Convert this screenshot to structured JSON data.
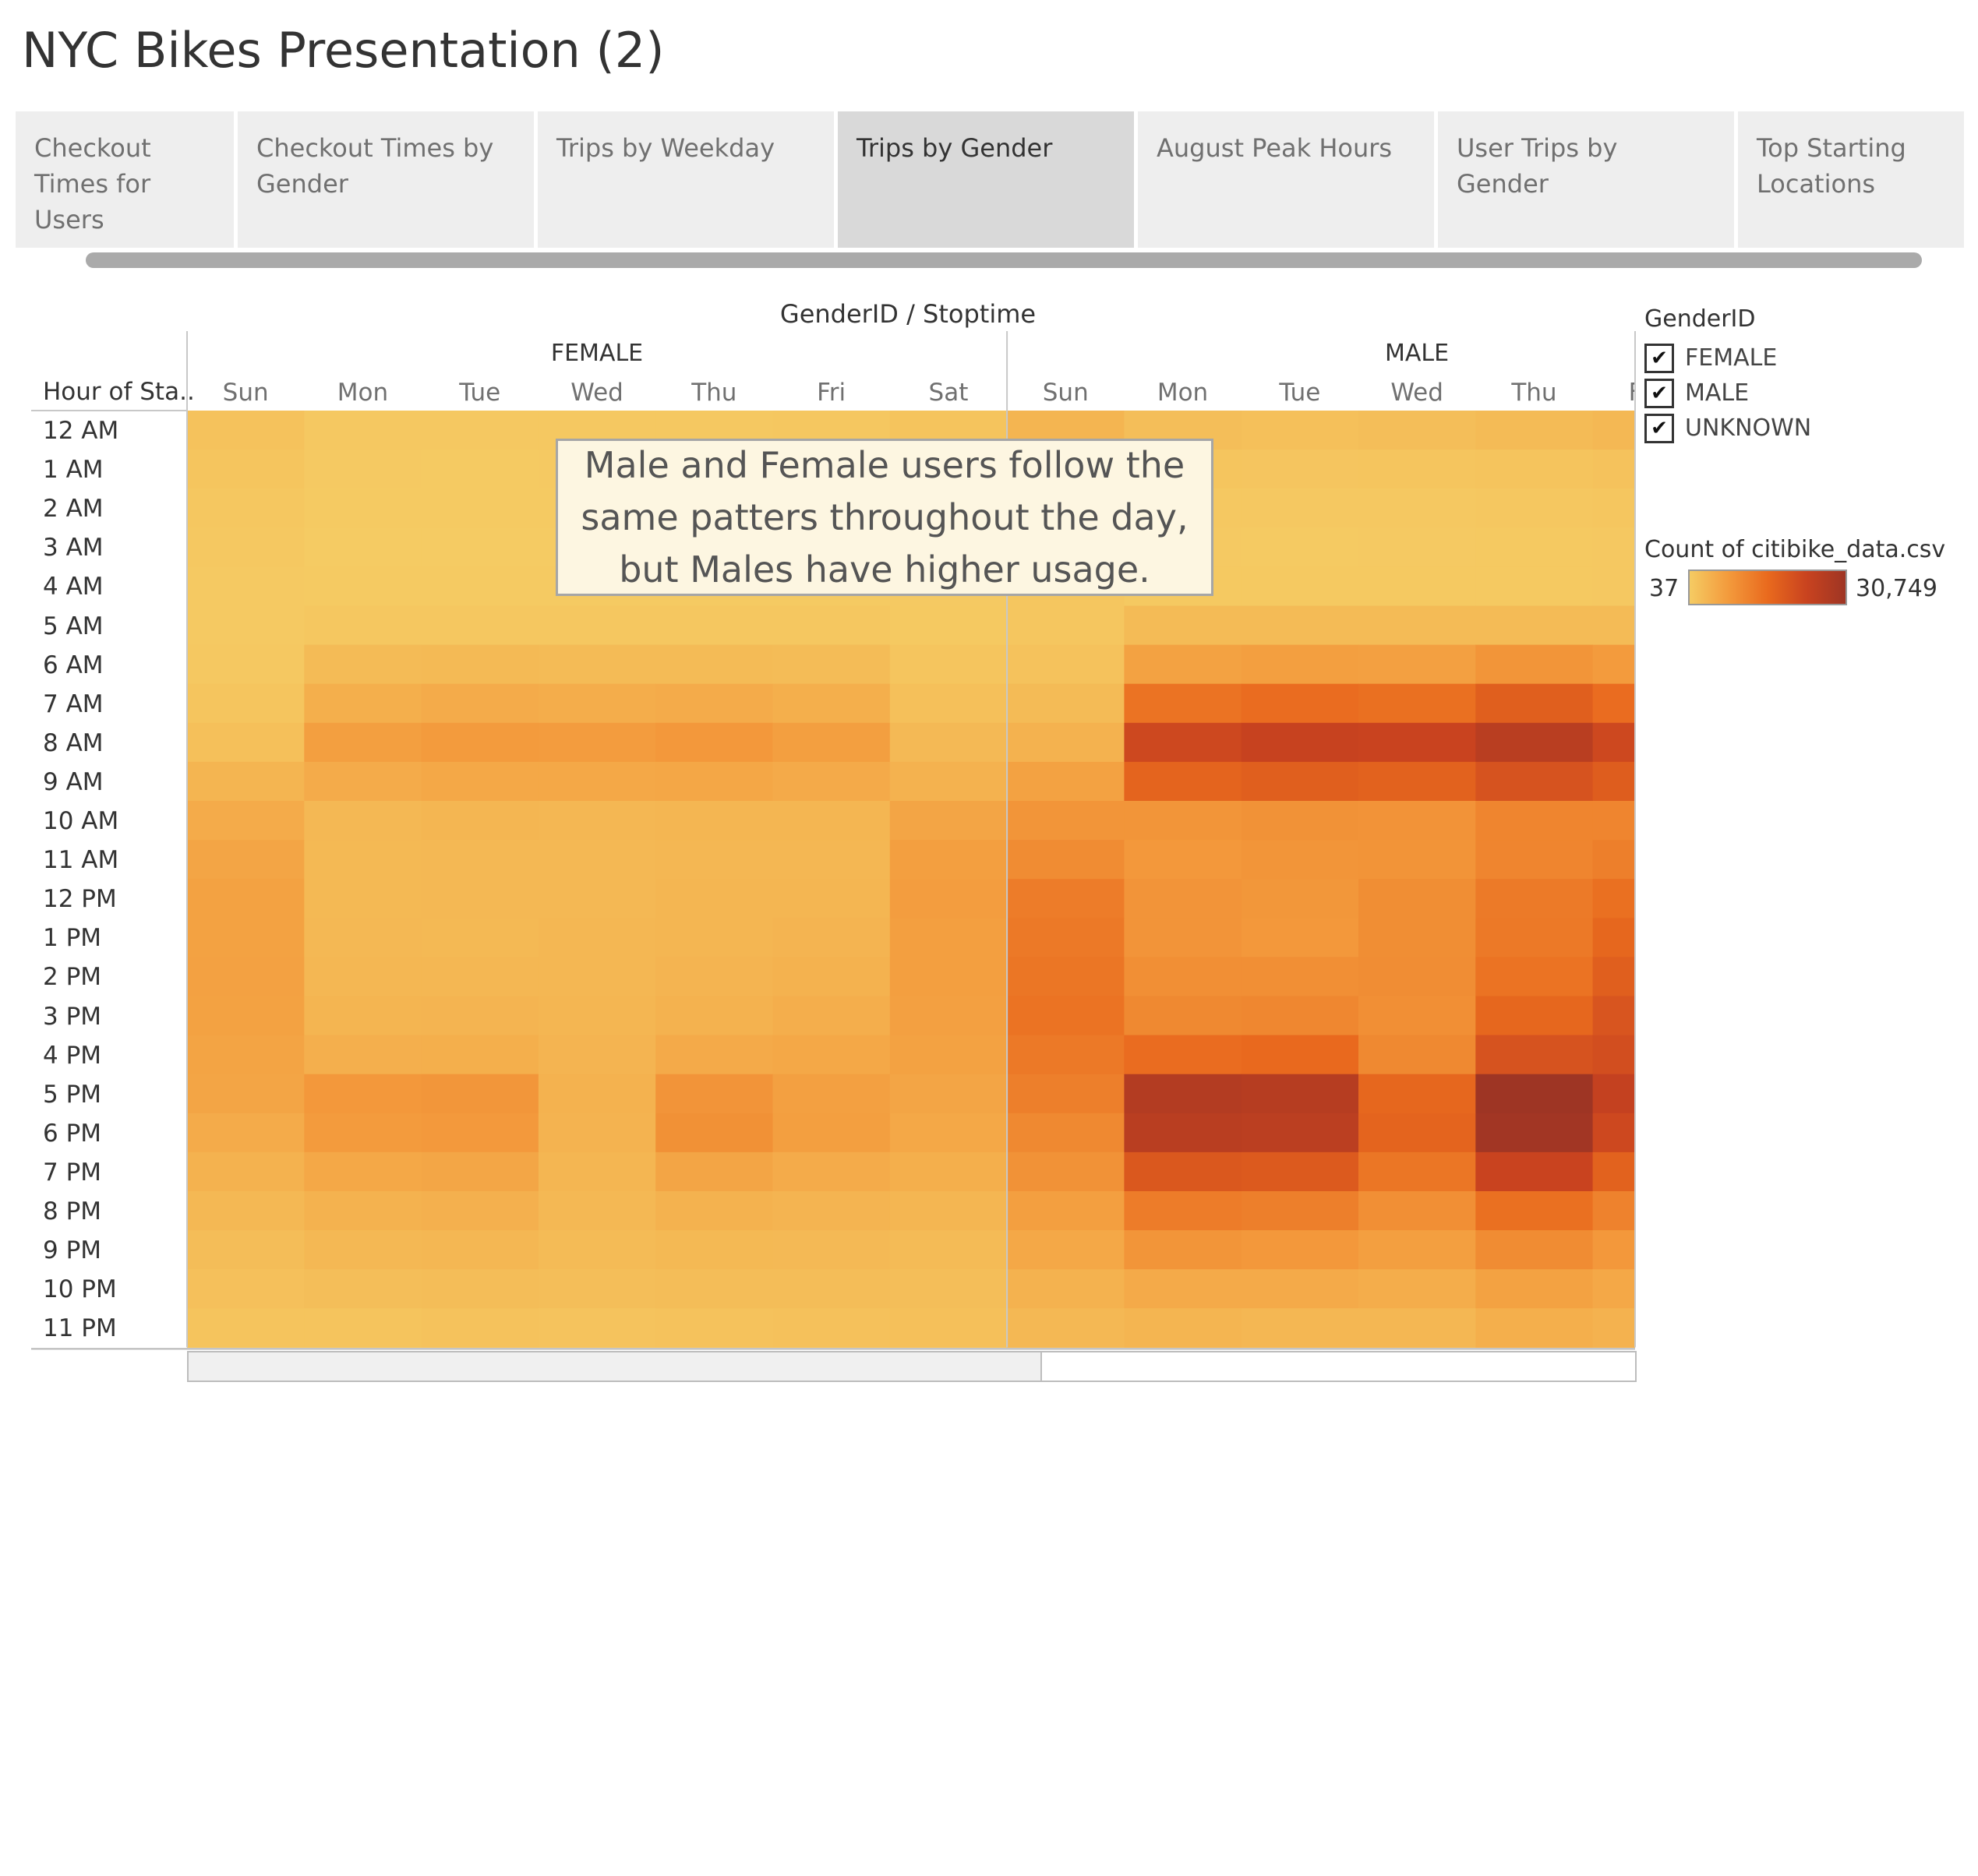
{
  "page": {
    "title": "NYC Bikes Presentation (2)"
  },
  "tabs": [
    {
      "label": "Checkout Times for Users",
      "active": false
    },
    {
      "label": "Checkout Times by Gender",
      "active": false
    },
    {
      "label": "Trips by Weekday",
      "active": false
    },
    {
      "label": "Trips by Gender",
      "active": true
    },
    {
      "label": "August Peak Hours",
      "active": false
    },
    {
      "label": "User Trips by Gender",
      "active": false
    },
    {
      "label": "Top Starting Locations",
      "active": false
    }
  ],
  "annotation": "Male and Female users follow the same patters throughout the day, but Males have higher usage.",
  "legend": {
    "title": "GenderID",
    "items": [
      {
        "label": "FEMALE",
        "checked": true
      },
      {
        "label": "MALE",
        "checked": true
      },
      {
        "label": "UNKNOWN",
        "checked": true
      }
    ],
    "color_title": "Count of citibike_data.csv",
    "color_min": "37",
    "color_max": "30,749",
    "colors": [
      "#f5cb63",
      "#f39a3c",
      "#e96a1e",
      "#c9431f",
      "#9e3524"
    ]
  },
  "chart_data": {
    "type": "heatmap",
    "title": "GenderID / Stoptime",
    "row_header": "Hour of Sta..",
    "groups": [
      "FEMALE",
      "MALE"
    ],
    "columns": [
      "Sun",
      "Mon",
      "Tue",
      "Wed",
      "Thu",
      "Fri",
      "Sat"
    ],
    "male_visible_columns": [
      "Sun",
      "Mon",
      "Tue",
      "Wed",
      "Thu",
      "Fri"
    ],
    "rows": [
      "12 AM",
      "1 AM",
      "2 AM",
      "3 AM",
      "4 AM",
      "5 AM",
      "6 AM",
      "7 AM",
      "8 AM",
      "9 AM",
      "10 AM",
      "11 AM",
      "12 PM",
      "1 PM",
      "2 PM",
      "3 PM",
      "4 PM",
      "5 PM",
      "6 PM",
      "7 PM",
      "8 PM",
      "9 PM",
      "10 PM",
      "11 PM"
    ],
    "value_range": [
      37,
      30749
    ],
    "series": [
      {
        "name": "FEMALE",
        "values": [
          [
            1500,
            500,
            450,
            500,
            500,
            600,
            1200
          ],
          [
            1000,
            300,
            250,
            300,
            300,
            350,
            900
          ],
          [
            700,
            150,
            150,
            150,
            200,
            250,
            600
          ],
          [
            500,
            100,
            80,
            100,
            100,
            150,
            400
          ],
          [
            300,
            150,
            150,
            150,
            150,
            150,
            300
          ],
          [
            300,
            700,
            700,
            700,
            700,
            700,
            400
          ],
          [
            500,
            2500,
            2700,
            2600,
            2500,
            2400,
            1000
          ],
          [
            1000,
            4500,
            5000,
            4800,
            5000,
            4500,
            1800
          ],
          [
            1800,
            7000,
            7500,
            7400,
            8000,
            7000,
            2800
          ],
          [
            3500,
            5000,
            5500,
            5500,
            5700,
            5200,
            4000
          ],
          [
            5000,
            3000,
            3300,
            3200,
            3400,
            3300,
            6000
          ],
          [
            6000,
            2900,
            3000,
            3000,
            3200,
            3200,
            7000
          ],
          [
            6500,
            2900,
            3000,
            3000,
            3300,
            3400,
            7200
          ],
          [
            6500,
            3000,
            2900,
            3100,
            3400,
            3600,
            7000
          ],
          [
            6600,
            3200,
            3200,
            3200,
            3600,
            4000,
            6900
          ],
          [
            6500,
            3500,
            3600,
            3300,
            4000,
            4600,
            6700
          ],
          [
            6200,
            4400,
            4500,
            3600,
            5200,
            5500,
            6500
          ],
          [
            6000,
            8000,
            8300,
            4000,
            8600,
            6800,
            6000
          ],
          [
            5000,
            7500,
            7800,
            3800,
            9200,
            7000,
            5500
          ],
          [
            4000,
            5500,
            5800,
            3400,
            6000,
            5000,
            4500
          ],
          [
            3000,
            4000,
            4200,
            3000,
            4000,
            3600,
            3400
          ],
          [
            2200,
            3000,
            3100,
            2600,
            2900,
            2800,
            2600
          ],
          [
            1700,
            2000,
            2200,
            2000,
            2200,
            2200,
            2100
          ],
          [
            1200,
            1200,
            1400,
            1300,
            1400,
            1600,
            1800
          ]
        ]
      },
      {
        "name": "MALE",
        "values": [
          [
            3500,
            2000,
            1800,
            2100,
            2500,
            3000
          ],
          [
            2500,
            1000,
            900,
            1000,
            1200,
            1500
          ],
          [
            1800,
            500,
            450,
            500,
            600,
            800
          ],
          [
            1300,
            300,
            250,
            300,
            400,
            500
          ],
          [
            800,
            400,
            400,
            400,
            400,
            500
          ],
          [
            800,
            2500,
            2500,
            2500,
            2600,
            2500
          ],
          [
            1500,
            6500,
            7000,
            6800,
            8500,
            7500
          ],
          [
            2500,
            14000,
            15000,
            14500,
            17500,
            15000
          ],
          [
            4000,
            22000,
            23500,
            23000,
            26000,
            22000
          ],
          [
            6500,
            16500,
            17500,
            17000,
            20000,
            18000
          ],
          [
            8500,
            8500,
            9000,
            8800,
            11000,
            11000
          ],
          [
            10000,
            8000,
            8500,
            8700,
            11000,
            12000
          ],
          [
            12500,
            8600,
            8200,
            9700,
            12800,
            14500
          ],
          [
            13000,
            8600,
            8000,
            9700,
            13000,
            16000
          ],
          [
            13500,
            9400,
            9500,
            9800,
            14000,
            17500
          ],
          [
            14000,
            10500,
            10800,
            9500,
            16000,
            19500
          ],
          [
            13000,
            15000,
            15500,
            10500,
            20000,
            21000
          ],
          [
            12000,
            27000,
            26500,
            16000,
            30749,
            24000
          ],
          [
            10500,
            26000,
            25500,
            16500,
            30000,
            22000
          ],
          [
            9000,
            19000,
            18500,
            13500,
            23000,
            17000
          ],
          [
            7000,
            12500,
            12000,
            9500,
            14500,
            11500
          ],
          [
            5500,
            8500,
            8000,
            7000,
            10000,
            8000
          ],
          [
            4000,
            5200,
            5200,
            4800,
            6500,
            5500
          ],
          [
            3000,
            3500,
            3200,
            3100,
            4500,
            4000
          ]
        ]
      }
    ]
  }
}
